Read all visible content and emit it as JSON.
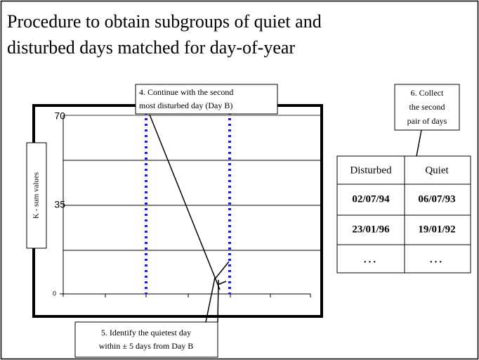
{
  "title": [
    "Procedure to obtain subgroups of quiet and",
    "disturbed days matched for day-of-year"
  ],
  "plot": {
    "y_axis_label": "K - sum values",
    "tick_labels": [
      "70",
      "35",
      "0"
    ]
  },
  "callouts": [
    {
      "lines": [
        "4. Continue with the second",
        "most disturbed day (Day B)"
      ]
    },
    {
      "lines": [
        "6. Collect",
        "the second",
        "pair of days"
      ]
    },
    {
      "lines": [
        "5. Identify the quietest day",
        "within ± 5 days from Day B"
      ]
    }
  ],
  "table": {
    "header": [
      "Disturbed",
      "Quiet"
    ],
    "rows": [
      [
        "02/07/94",
        "06/07/93"
      ],
      [
        "23/01/96",
        "19/01/92"
      ],
      [
        "...",
        "..."
      ]
    ]
  }
}
